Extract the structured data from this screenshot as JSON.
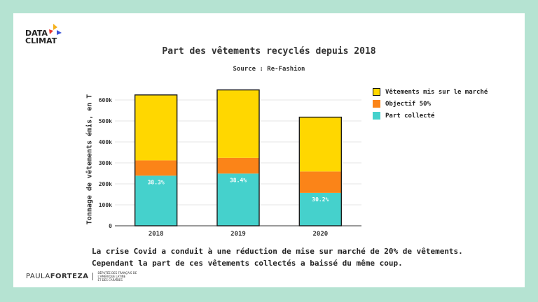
{
  "logo": {
    "line1": "DATA",
    "line2": "CLIMAT"
  },
  "chart_data": {
    "type": "bar",
    "stacked": true,
    "title": "Part des vêtements recyclés depuis 2018",
    "subtitle": "Source : Re-Fashion",
    "ylabel": "Tonnage de vêtements émis, en T",
    "xlabel": "",
    "categories": [
      "2018",
      "2019",
      "2020"
    ],
    "ylim": [
      0,
      650000
    ],
    "yticks": [
      0,
      100000,
      200000,
      300000,
      400000,
      500000,
      600000
    ],
    "ytick_labels": [
      "0",
      "100k",
      "200k",
      "300k",
      "400k",
      "500k",
      "600k"
    ],
    "totals": [
      624000,
      648000,
      518000
    ],
    "series": [
      {
        "name": "Part collecté",
        "color": "#45d1cc",
        "values": [
          239000,
          249000,
          157000
        ]
      },
      {
        "name": "Objectif 50%",
        "color": "#fb8418",
        "values": [
          73000,
          75000,
          102000
        ]
      },
      {
        "name": "Vêtements mis sur le marché",
        "color": "#ffd700",
        "values": [
          312000,
          324000,
          259000
        ]
      }
    ],
    "data_labels": [
      "38.3%",
      "38.4%",
      "30.2%"
    ],
    "legend_order": [
      "Vêtements mis sur le marché",
      "Objectif 50%",
      "Part collecté"
    ],
    "legend_position": "right",
    "grid": true
  },
  "caption": {
    "line1": "La crise Covid a conduit à une réduction de mise sur marché de 20% de vêtements.",
    "line2": "Cependant la part de ces vêtements collectés a baissé du même coup."
  },
  "footer": {
    "name_light": "PAULA",
    "name_bold": "FORTEZA",
    "small_line1": "DÉPUTÉE DES FRANÇAIS DE L'AMÉRIQUE LATINE",
    "small_line2": "ET DES CARAÏBES"
  }
}
